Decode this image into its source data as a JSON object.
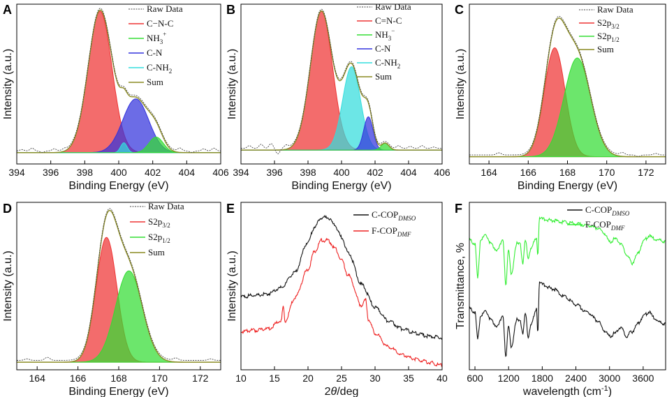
{
  "figure": {
    "background": "#ffffff"
  },
  "chart_data": [
    {
      "id": "A",
      "type": "line",
      "subtype": "xps-deconvolution",
      "panel_label": "A",
      "xlabel": "Binding Energy (eV)",
      "ylabel": "Intensity (a.u.)",
      "xlim": [
        394,
        406
      ],
      "ylim": [
        -0.08,
        1.05
      ],
      "xticks": [
        394,
        396,
        398,
        400,
        402,
        404,
        406
      ],
      "tick_labels": [
        "394",
        "396",
        "398",
        "400",
        "402",
        "404",
        "406"
      ],
      "legend": [
        {
          "key": "raw",
          "label": "Raw Data",
          "color": "#444444"
        },
        {
          "key": "p1",
          "label": "C−N-C",
          "color": "#ee3333"
        },
        {
          "key": "p2",
          "label": "NH",
          "sub": "3",
          "sup": "+",
          "color": "#33dd33"
        },
        {
          "key": "p3",
          "label": "C-N",
          "color": "#3333dd"
        },
        {
          "key": "p4",
          "label": "C-NH",
          "sub": "2",
          "color": "#33dddd"
        },
        {
          "key": "sum",
          "label": "Sum",
          "color": "#8a8a22"
        }
      ],
      "series": [
        {
          "key": "p1",
          "name": "C−N-C",
          "center": 398.9,
          "height": 1.0,
          "fwhm": 1.65,
          "color": "#ee3333"
        },
        {
          "key": "p3",
          "name": "C-N",
          "center": 401.0,
          "height": 0.38,
          "fwhm": 1.8,
          "color": "#3333dd"
        },
        {
          "key": "p4",
          "name": "C-NH2",
          "center": 400.3,
          "height": 0.07,
          "fwhm": 0.45,
          "color": "#33dddd"
        },
        {
          "key": "p2",
          "name": "NH3+",
          "center": 402.2,
          "height": 0.11,
          "fwhm": 1.0,
          "color": "#33dd33"
        }
      ],
      "baseline_noise": [
        {
          "x": 394.3,
          "y": 0.01
        },
        {
          "x": 394.9,
          "y": 0.02
        },
        {
          "x": 395.5,
          "y": -0.01
        },
        {
          "x": 396.2,
          "y": 0.015
        },
        {
          "x": 396.8,
          "y": 0.01
        },
        {
          "x": 403.6,
          "y": 0.02
        },
        {
          "x": 404.3,
          "y": -0.01
        },
        {
          "x": 405.0,
          "y": 0.015
        },
        {
          "x": 405.6,
          "y": 0.02
        }
      ]
    },
    {
      "id": "B",
      "type": "line",
      "subtype": "xps-deconvolution",
      "panel_label": "B",
      "xlabel": "Binding Energy (eV)",
      "ylabel": "Intensity (a.u.)",
      "xlim": [
        394,
        406
      ],
      "ylim": [
        -0.1,
        1.05
      ],
      "xticks": [
        394,
        396,
        398,
        400,
        402,
        404,
        406
      ],
      "tick_labels": [
        "394",
        "396",
        "398",
        "400",
        "402",
        "404",
        "406"
      ],
      "legend": [
        {
          "key": "raw",
          "label": "Raw Data",
          "color": "#444444"
        },
        {
          "key": "p1",
          "label": "C=N-C",
          "color": "#ee3333"
        },
        {
          "key": "p2",
          "label": "NH",
          "sub": "3",
          "sup": "−",
          "color": "#33dd33"
        },
        {
          "key": "p3",
          "label": "C-N",
          "color": "#3333dd"
        },
        {
          "key": "p4",
          "label": "C-NH",
          "sub": "2",
          "color": "#33dddd"
        },
        {
          "key": "sum",
          "label": "Sum",
          "color": "#8a8a22"
        }
      ],
      "series": [
        {
          "key": "p1",
          "name": "C=N-C",
          "center": 398.8,
          "height": 1.0,
          "fwhm": 1.55,
          "color": "#ee3333"
        },
        {
          "key": "p4",
          "name": "C-NH2",
          "center": 400.6,
          "height": 0.6,
          "fwhm": 1.25,
          "color": "#33dddd"
        },
        {
          "key": "p3",
          "name": "C-N",
          "center": 401.6,
          "height": 0.24,
          "fwhm": 0.65,
          "color": "#3333dd"
        },
        {
          "key": "p2",
          "name": "NH3-",
          "center": 402.6,
          "height": 0.05,
          "fwhm": 0.55,
          "color": "#33dd33"
        }
      ],
      "baseline_noise": [
        {
          "x": 394.5,
          "y": 0.02
        },
        {
          "x": 395.2,
          "y": 0.03
        },
        {
          "x": 395.8,
          "y": 0.035
        },
        {
          "x": 396.2,
          "y": -0.04
        },
        {
          "x": 396.7,
          "y": 0.02
        },
        {
          "x": 403.4,
          "y": 0.02
        },
        {
          "x": 404.1,
          "y": 0.015
        },
        {
          "x": 404.8,
          "y": 0.02
        },
        {
          "x": 405.5,
          "y": 0.01
        }
      ]
    },
    {
      "id": "C",
      "type": "line",
      "subtype": "xps-deconvolution",
      "panel_label": "C",
      "xlabel": "Binding Energy (eV)",
      "ylabel": "Intensity (a.u.)",
      "xlim": [
        163,
        173
      ],
      "ylim": [
        -0.05,
        1.05
      ],
      "xticks": [
        164,
        166,
        168,
        170,
        172
      ],
      "tick_labels": [
        "164",
        "166",
        "168",
        "170",
        "172"
      ],
      "legend": [
        {
          "key": "raw",
          "label": "Raw Data",
          "color": "#444444"
        },
        {
          "key": "p1",
          "label": "S2p",
          "sub": "3/2",
          "color": "#ee3333"
        },
        {
          "key": "p2",
          "label": "S2p",
          "sub": "1/2",
          "color": "#33dd33"
        },
        {
          "key": "sum",
          "label": "Sum",
          "color": "#8a8a22"
        }
      ],
      "series": [
        {
          "key": "p1",
          "name": "S2p3/2",
          "center": 167.35,
          "height": 0.75,
          "fwhm": 1.25,
          "color": "#ee3333"
        },
        {
          "key": "p2",
          "name": "S2p1/2",
          "center": 168.5,
          "height": 0.68,
          "fwhm": 1.6,
          "color": "#33dd33"
        }
      ],
      "baseline_noise": [
        {
          "x": 163.5,
          "y": 0.0
        },
        {
          "x": 164.5,
          "y": 0.015
        },
        {
          "x": 165.5,
          "y": 0.0
        },
        {
          "x": 170.8,
          "y": 0.015
        },
        {
          "x": 171.6,
          "y": -0.01
        },
        {
          "x": 172.5,
          "y": 0.01
        }
      ]
    },
    {
      "id": "D",
      "type": "line",
      "subtype": "xps-deconvolution",
      "panel_label": "D",
      "xlabel": "Binding Energy (eV)",
      "ylabel": "Intensity (a.u.)",
      "xlim": [
        163,
        173
      ],
      "ylim": [
        -0.05,
        1.05
      ],
      "xticks": [
        164,
        166,
        168,
        170,
        172
      ],
      "tick_labels": [
        "164",
        "166",
        "168",
        "170",
        "172"
      ],
      "legend": [
        {
          "key": "raw",
          "label": "Raw Data",
          "color": "#444444"
        },
        {
          "key": "p1",
          "label": "S2p",
          "sub": "3/2",
          "color": "#ee3333"
        },
        {
          "key": "p2",
          "label": "S2p",
          "sub": "1/2",
          "color": "#33dd33"
        },
        {
          "key": "sum",
          "label": "Sum",
          "color": "#8a8a22"
        }
      ],
      "series": [
        {
          "key": "p1",
          "name": "S2p3/2",
          "center": 167.4,
          "height": 0.82,
          "fwhm": 1.2,
          "color": "#ee3333"
        },
        {
          "key": "p2",
          "name": "S2p1/2",
          "center": 168.5,
          "height": 0.6,
          "fwhm": 1.55,
          "color": "#33dd33"
        }
      ],
      "baseline_noise": [
        {
          "x": 163.5,
          "y": 0.01
        },
        {
          "x": 164.5,
          "y": 0.02
        },
        {
          "x": 165.5,
          "y": 0.0
        },
        {
          "x": 170.8,
          "y": 0.015
        },
        {
          "x": 171.6,
          "y": 0.0
        },
        {
          "x": 172.5,
          "y": 0.01
        }
      ]
    },
    {
      "id": "E",
      "type": "line",
      "subtype": "xrd",
      "panel_label": "E",
      "xlabel_prefix": "2",
      "xlabel_theta": "θ",
      "xlabel_suffix": "/deg",
      "ylabel": "Intensity (a.u.)",
      "xlim": [
        10,
        40
      ],
      "ylim": [
        0,
        1.1
      ],
      "xticks": [
        10,
        15,
        20,
        25,
        30,
        35,
        40
      ],
      "tick_labels": [
        "10",
        "15",
        "20",
        "25",
        "30",
        "35",
        "40"
      ],
      "legend": [
        {
          "key": "s1",
          "label": "C-COP",
          "sub": "DMSO",
          "color": "#111111"
        },
        {
          "key": "s2",
          "label": "F-COP",
          "sub": "DMF",
          "color": "#ee2222"
        }
      ],
      "series": [
        {
          "key": "s1",
          "name": "C-COP DMSO",
          "color": "#111111",
          "x": [
            10,
            12,
            14,
            16,
            18,
            20,
            21,
            22,
            23,
            24,
            25,
            26,
            28,
            30,
            32,
            34,
            36,
            38,
            40
          ],
          "y": [
            0.48,
            0.49,
            0.5,
            0.54,
            0.64,
            0.84,
            0.94,
            1.0,
            1.0,
            0.95,
            0.87,
            0.77,
            0.56,
            0.41,
            0.32,
            0.27,
            0.24,
            0.22,
            0.21
          ]
        },
        {
          "key": "s2",
          "name": "F-COP DMF",
          "color": "#ee2222",
          "x": [
            10,
            12,
            14,
            16,
            16.3,
            16.6,
            18,
            20,
            21,
            22,
            23,
            24,
            25,
            26,
            28,
            28.6,
            29,
            30,
            32,
            34,
            36,
            38,
            40
          ],
          "y": [
            0.25,
            0.26,
            0.27,
            0.32,
            0.41,
            0.32,
            0.47,
            0.66,
            0.78,
            0.85,
            0.85,
            0.8,
            0.72,
            0.62,
            0.42,
            0.46,
            0.33,
            0.24,
            0.15,
            0.1,
            0.07,
            0.05,
            0.03
          ]
        }
      ]
    },
    {
      "id": "F",
      "type": "line",
      "subtype": "ftir",
      "panel_label": "F",
      "xlabel": "wavelength (cm",
      "xlabel_sup": "-1",
      "xlabel_close": ")",
      "ylabel": "Transmittance, %",
      "xlim": [
        500,
        4000
      ],
      "ylim": [
        0,
        1.1
      ],
      "xticks": [
        600,
        1200,
        1800,
        2400,
        3000,
        3600
      ],
      "tick_labels": [
        "600",
        "1200",
        "1800",
        "2400",
        "3000",
        "3600"
      ],
      "legend": [
        {
          "key": "s1",
          "label": "C-COP",
          "sub": "DMSO",
          "color": "#111111"
        },
        {
          "key": "s2",
          "label": "F-COP",
          "sub": "DMF",
          "color": "#33ee33"
        }
      ],
      "series": [
        {
          "key": "s1",
          "name": "C-COP DMSO",
          "color": "#111111",
          "x": [
            500,
            600,
            650,
            700,
            800,
            900,
            1000,
            1100,
            1150,
            1200,
            1250,
            1350,
            1400,
            1450,
            1500,
            1550,
            1600,
            1650,
            1700,
            1720,
            1750,
            1800,
            2000,
            2200,
            2400,
            2600,
            2800,
            2900,
            3000,
            3100,
            3200,
            3300,
            3400,
            3500,
            3600,
            3700,
            3800,
            3900,
            4000
          ],
          "y": [
            0.4,
            0.38,
            0.2,
            0.36,
            0.38,
            0.32,
            0.28,
            0.36,
            0.08,
            0.3,
            0.14,
            0.34,
            0.32,
            0.24,
            0.38,
            0.2,
            0.3,
            0.35,
            0.4,
            0.25,
            0.58,
            0.56,
            0.53,
            0.48,
            0.43,
            0.38,
            0.32,
            0.26,
            0.22,
            0.24,
            0.28,
            0.22,
            0.25,
            0.3,
            0.35,
            0.38,
            0.34,
            0.31,
            0.3
          ]
        },
        {
          "key": "s2",
          "name": "F-COP DMF",
          "color": "#33ee33",
          "x": [
            500,
            600,
            650,
            700,
            800,
            900,
            1000,
            1100,
            1150,
            1200,
            1250,
            1350,
            1400,
            1450,
            1500,
            1550,
            1600,
            1650,
            1700,
            1720,
            1750,
            1800,
            2000,
            2200,
            2400,
            2600,
            2800,
            2900,
            3000,
            3100,
            3200,
            3300,
            3400,
            3500,
            3600,
            3700,
            3800,
            3900,
            4000
          ],
          "y": [
            0.85,
            0.83,
            0.6,
            0.86,
            0.88,
            0.82,
            0.78,
            0.86,
            0.55,
            0.8,
            0.62,
            0.84,
            0.83,
            0.7,
            0.86,
            0.72,
            0.8,
            0.84,
            0.86,
            0.76,
            1.0,
            0.99,
            0.98,
            0.97,
            0.96,
            0.95,
            0.93,
            0.9,
            0.84,
            0.86,
            0.83,
            0.76,
            0.7,
            0.76,
            0.84,
            0.88,
            0.86,
            0.85,
            0.84
          ]
        }
      ]
    }
  ]
}
